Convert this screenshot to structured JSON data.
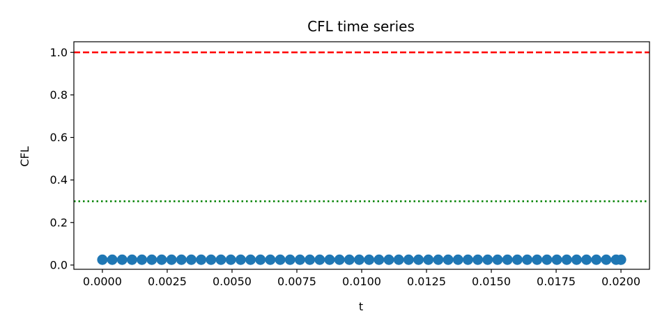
{
  "chart_data": {
    "type": "scatter",
    "title": "CFL time series",
    "xlabel": "t",
    "ylabel": "CFL",
    "xlim": [
      -0.0011,
      0.0211
    ],
    "ylim": [
      -0.02,
      1.05
    ],
    "xticks": [
      0.0,
      0.0025,
      0.005,
      0.0075,
      0.01,
      0.0125,
      0.015,
      0.0175,
      0.02
    ],
    "xtick_labels": [
      "0.0000",
      "0.0025",
      "0.0050",
      "0.0075",
      "0.0100",
      "0.0125",
      "0.0150",
      "0.0175",
      "0.0200"
    ],
    "yticks": [
      0.0,
      0.2,
      0.4,
      0.6,
      0.8,
      1.0
    ],
    "ytick_labels": [
      "0.0",
      "0.2",
      "0.4",
      "0.6",
      "0.8",
      "1.0"
    ],
    "grid": false,
    "series": [
      {
        "color": "#1f77b4",
        "marker": "circle",
        "x": [
          0.0,
          0.000381,
          0.000762,
          0.001143,
          0.001524,
          0.001905,
          0.002286,
          0.002667,
          0.003048,
          0.003429,
          0.00381,
          0.004191,
          0.004572,
          0.004953,
          0.005334,
          0.005715,
          0.006096,
          0.006477,
          0.006858,
          0.007239,
          0.00762,
          0.008001,
          0.008382,
          0.008763,
          0.009144,
          0.009525,
          0.009906,
          0.010287,
          0.010668,
          0.011049,
          0.01143,
          0.011811,
          0.012192,
          0.012573,
          0.012954,
          0.013335,
          0.013716,
          0.014097,
          0.014478,
          0.014859,
          0.01524,
          0.015621,
          0.016002,
          0.016383,
          0.016764,
          0.017145,
          0.017526,
          0.017907,
          0.018288,
          0.018669,
          0.01905,
          0.019431,
          0.019812,
          0.02
        ],
        "y": [
          0.025,
          0.025,
          0.025,
          0.025,
          0.025,
          0.025,
          0.025,
          0.025,
          0.025,
          0.025,
          0.025,
          0.025,
          0.025,
          0.025,
          0.025,
          0.025,
          0.025,
          0.025,
          0.025,
          0.025,
          0.025,
          0.025,
          0.025,
          0.025,
          0.025,
          0.025,
          0.025,
          0.025,
          0.025,
          0.025,
          0.025,
          0.025,
          0.025,
          0.025,
          0.025,
          0.025,
          0.025,
          0.025,
          0.025,
          0.025,
          0.025,
          0.025,
          0.025,
          0.025,
          0.025,
          0.025,
          0.025,
          0.025,
          0.025,
          0.025,
          0.025,
          0.025,
          0.025,
          0.025
        ]
      }
    ],
    "reference_lines": [
      {
        "orientation": "horizontal",
        "y": 1.0,
        "color": "#ff0000",
        "style": "dashed"
      },
      {
        "orientation": "horizontal",
        "y": 0.3,
        "color": "#008000",
        "style": "dotted"
      }
    ]
  }
}
